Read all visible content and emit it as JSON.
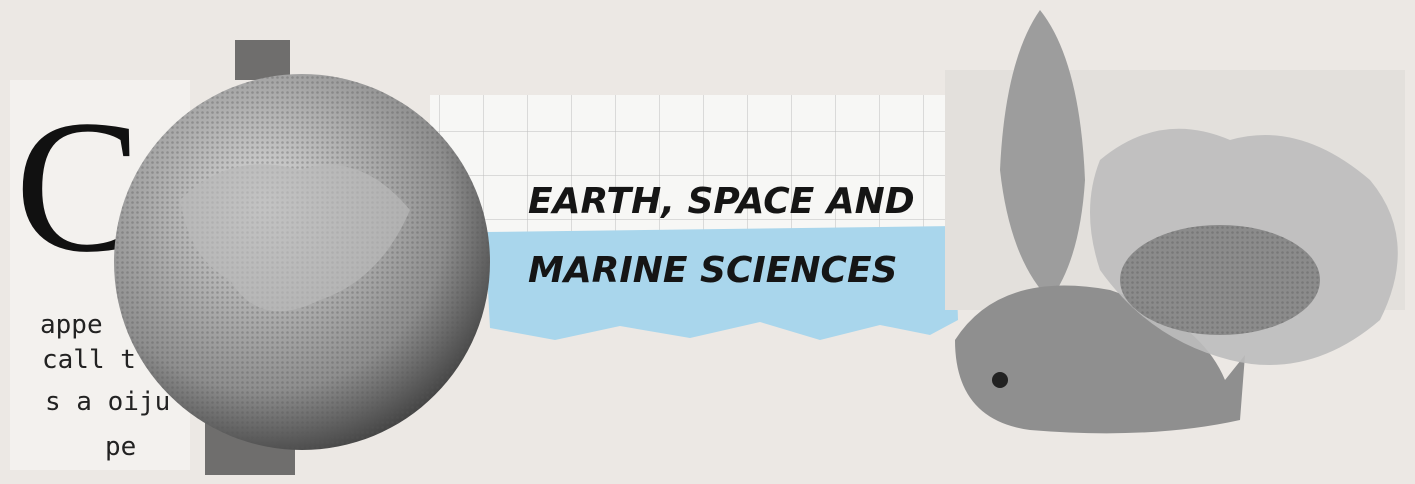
{
  "banner": {
    "title_lines": [
      "EARTH, SPACE AND",
      "MARINE SCIENCES"
    ]
  },
  "collage": {
    "fragments": [
      "C",
      "appe",
      "call t",
      "s a oiju",
      "pe"
    ]
  }
}
